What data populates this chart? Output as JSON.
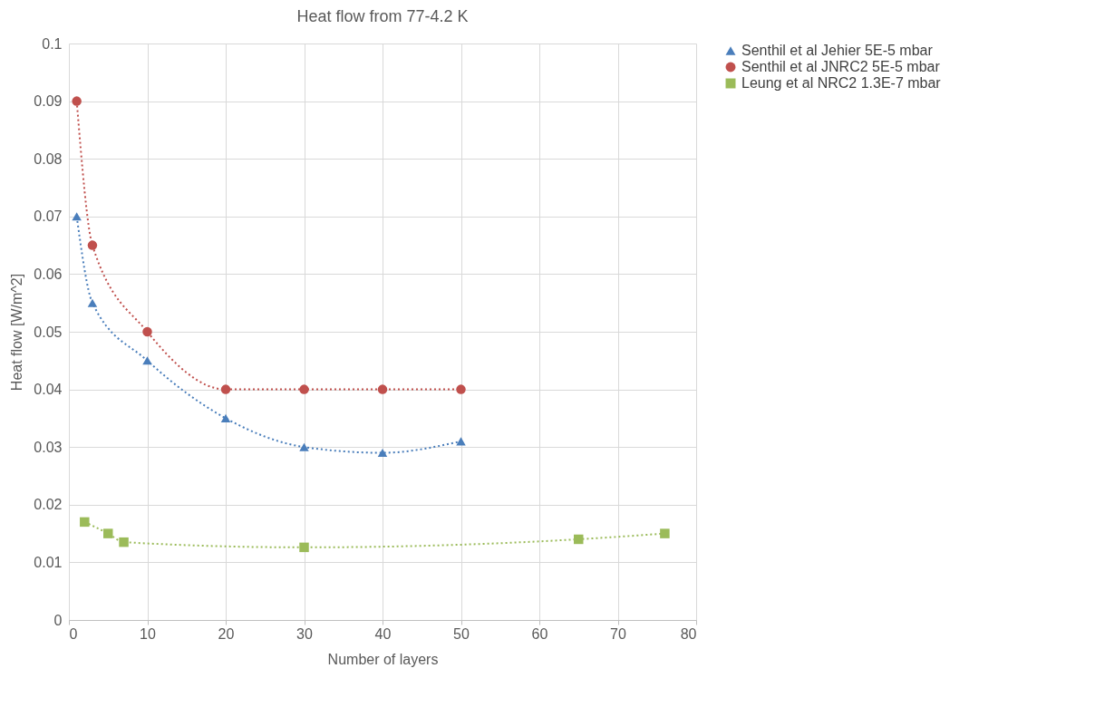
{
  "chart_data": {
    "type": "line",
    "title": "Heat flow from 77-4.2 K",
    "xlabel": "Number of layers",
    "ylabel": "Heat flow [W/m^2]",
    "xlim": [
      0,
      80
    ],
    "xticks": [
      0,
      10,
      20,
      30,
      40,
      50,
      60,
      70,
      80
    ],
    "ylim": [
      0,
      0.1
    ],
    "yticks": [
      0,
      0.01,
      0.02,
      0.03,
      0.04,
      0.05,
      0.06,
      0.07,
      0.08,
      0.09,
      0.1
    ],
    "grid": true,
    "legend": "right",
    "line_style": "dotted",
    "series": [
      {
        "name": "Senthil et al Jehier 5E-5 mbar",
        "color": "#4a7ebb",
        "marker": "triangle",
        "x": [
          1,
          3,
          10,
          20,
          30,
          40,
          50
        ],
        "values": [
          0.07,
          0.055,
          0.045,
          0.035,
          0.03,
          0.029,
          0.031
        ]
      },
      {
        "name": "Senthil et al JNRC2 5E-5 mbar",
        "color": "#c0504d",
        "marker": "circle",
        "x": [
          1,
          3,
          10,
          20,
          30,
          40,
          50
        ],
        "values": [
          0.09,
          0.065,
          0.05,
          0.04,
          0.04,
          0.04,
          0.04
        ]
      },
      {
        "name": "Leung et al NRC2 1.3E-7 mbar",
        "color": "#9bbb59",
        "marker": "square",
        "x": [
          2,
          5,
          7,
          30,
          65,
          76
        ],
        "values": [
          0.017,
          0.015,
          0.0135,
          0.0126,
          0.014,
          0.015
        ]
      }
    ]
  }
}
